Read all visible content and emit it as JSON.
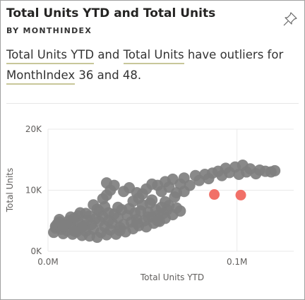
{
  "visual": {
    "title": "Total Units YTD and Total Units",
    "subtitle": "BY MONTHINDEX",
    "pin_icon": "pin-icon"
  },
  "narrative": {
    "part1": "Total Units YTD",
    "part2": " and ",
    "part3": "Total Units",
    "part4": " have outliers for ",
    "part5": "MonthIndex",
    "part6": " 36 and 48."
  },
  "chart_data": {
    "type": "scatter",
    "xlabel": "Total Units YTD",
    "ylabel": "Total Units",
    "xlim": [
      0,
      0.13
    ],
    "ylim": [
      0,
      20000
    ],
    "x_ticks": [
      {
        "value": 0,
        "label": "0.0M"
      },
      {
        "value": 0.1,
        "label": "0.1M"
      }
    ],
    "y_ticks": [
      {
        "value": 0,
        "label": "0K"
      },
      {
        "value": 10000,
        "label": "10K"
      },
      {
        "value": 20000,
        "label": "20K"
      }
    ],
    "grid": true,
    "colors": {
      "normal": "#7f7f7f",
      "outlier": "#f17068"
    },
    "series": [
      {
        "points": [
          [
            0.003,
            3100
          ],
          [
            0.004,
            3800
          ],
          [
            0.005,
            4500
          ],
          [
            0.006,
            5200
          ],
          [
            0.004,
            4100
          ],
          [
            0.007,
            3600
          ],
          [
            0.008,
            2900
          ],
          [
            0.006,
            4800
          ],
          [
            0.009,
            4300
          ],
          [
            0.01,
            3400
          ],
          [
            0.011,
            5000
          ],
          [
            0.012,
            3900
          ],
          [
            0.013,
            2800
          ],
          [
            0.012,
            4600
          ],
          [
            0.014,
            5400
          ],
          [
            0.015,
            3200
          ],
          [
            0.016,
            4700
          ],
          [
            0.017,
            3800
          ],
          [
            0.018,
            2600
          ],
          [
            0.016,
            5800
          ],
          [
            0.019,
            4200
          ],
          [
            0.02,
            3300
          ],
          [
            0.021,
            5100
          ],
          [
            0.022,
            2500
          ],
          [
            0.02,
            6200
          ],
          [
            0.023,
            4400
          ],
          [
            0.024,
            3600
          ],
          [
            0.025,
            5300
          ],
          [
            0.026,
            2300
          ],
          [
            0.027,
            4900
          ],
          [
            0.028,
            3100
          ],
          [
            0.029,
            5700
          ],
          [
            0.027,
            6600
          ],
          [
            0.03,
            4100
          ],
          [
            0.031,
            2700
          ],
          [
            0.032,
            5000
          ],
          [
            0.033,
            3500
          ],
          [
            0.03,
            7300
          ],
          [
            0.034,
            4600
          ],
          [
            0.035,
            6100
          ],
          [
            0.036,
            2800
          ],
          [
            0.037,
            5500
          ],
          [
            0.038,
            3900
          ],
          [
            0.039,
            6800
          ],
          [
            0.04,
            4400
          ],
          [
            0.041,
            3200
          ],
          [
            0.042,
            5900
          ],
          [
            0.043,
            7000
          ],
          [
            0.044,
            4800
          ],
          [
            0.045,
            3700
          ],
          [
            0.046,
            6300
          ],
          [
            0.047,
            5200
          ],
          [
            0.048,
            4200
          ],
          [
            0.049,
            6600
          ],
          [
            0.05,
            7600
          ],
          [
            0.051,
            5000
          ],
          [
            0.052,
            4000
          ],
          [
            0.053,
            6400
          ],
          [
            0.054,
            7900
          ],
          [
            0.055,
            5600
          ],
          [
            0.056,
            4600
          ],
          [
            0.057,
            6800
          ],
          [
            0.058,
            5900
          ],
          [
            0.059,
            4900
          ],
          [
            0.06,
            7200
          ],
          [
            0.061,
            6200
          ],
          [
            0.062,
            5400
          ],
          [
            0.063,
            6800
          ],
          [
            0.064,
            7500
          ],
          [
            0.066,
            6000
          ],
          [
            0.068,
            7100
          ],
          [
            0.07,
            6600
          ],
          [
            0.031,
            9200
          ],
          [
            0.033,
            10000
          ],
          [
            0.035,
            10800
          ],
          [
            0.031,
            11200
          ],
          [
            0.029,
            8600
          ],
          [
            0.04,
            9800
          ],
          [
            0.043,
            10400
          ],
          [
            0.047,
            9600
          ],
          [
            0.052,
            10200
          ],
          [
            0.055,
            11000
          ],
          [
            0.05,
            9400
          ],
          [
            0.058,
            10800
          ],
          [
            0.06,
            9800
          ],
          [
            0.062,
            11400
          ],
          [
            0.064,
            10500
          ],
          [
            0.066,
            11800
          ],
          [
            0.068,
            9600
          ],
          [
            0.07,
            11000
          ],
          [
            0.072,
            12000
          ],
          [
            0.075,
            10800
          ],
          [
            0.078,
            12400
          ],
          [
            0.08,
            11600
          ],
          [
            0.083,
            12600
          ],
          [
            0.085,
            11900
          ],
          [
            0.087,
            12800
          ],
          [
            0.09,
            13100
          ],
          [
            0.092,
            12400
          ],
          [
            0.094,
            13600
          ],
          [
            0.096,
            12900
          ],
          [
            0.099,
            13800
          ],
          [
            0.101,
            12600
          ],
          [
            0.103,
            14100
          ],
          [
            0.105,
            13000
          ],
          [
            0.107,
            13500
          ],
          [
            0.11,
            12700
          ],
          [
            0.112,
            13300
          ],
          [
            0.115,
            13100
          ],
          [
            0.118,
            13000
          ],
          [
            0.12,
            13200
          ],
          [
            0.008,
            4200
          ],
          [
            0.012,
            5600
          ],
          [
            0.017,
            6300
          ],
          [
            0.022,
            5800
          ],
          [
            0.026,
            6900
          ],
          [
            0.032,
            6300
          ],
          [
            0.037,
            7200
          ],
          [
            0.045,
            8200
          ],
          [
            0.048,
            8700
          ],
          [
            0.055,
            8400
          ],
          [
            0.062,
            8100
          ],
          [
            0.067,
            8900
          ],
          [
            0.072,
            9800
          ],
          [
            0.024,
            7600
          ],
          [
            0.018,
            4000
          ],
          [
            0.014,
            3300
          ],
          [
            0.038,
            3400
          ],
          [
            0.047,
            4600
          ],
          [
            0.053,
            5600
          ],
          [
            0.058,
            5000
          ]
        ]
      },
      {
        "name": "outliers",
        "points": [
          [
            0.088,
            9300
          ],
          [
            0.102,
            9200
          ]
        ]
      }
    ]
  }
}
